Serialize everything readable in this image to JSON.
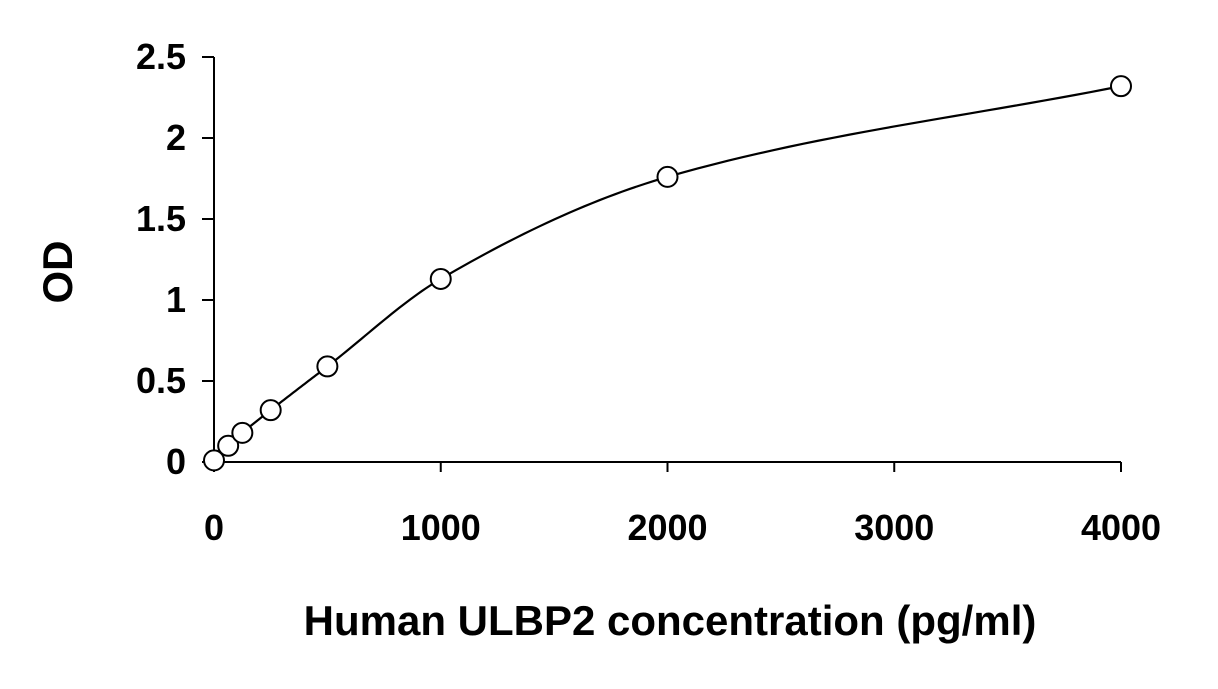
{
  "chart_data": {
    "type": "scatter",
    "xlabel": "Human ULBP2 concentration (pg/ml)",
    "ylabel": "OD",
    "xlim": [
      0,
      4000
    ],
    "ylim": [
      0,
      2.5
    ],
    "x_ticks": [
      "0",
      "1000",
      "2000",
      "3000",
      "4000"
    ],
    "x_tick_values": [
      0,
      1000,
      2000,
      3000,
      4000
    ],
    "y_ticks": [
      "0",
      "0.5",
      "1",
      "1.5",
      "2",
      "2.5"
    ],
    "y_tick_values": [
      0,
      0.5,
      1,
      1.5,
      2,
      2.5
    ],
    "grid": false,
    "legend": "none",
    "series": [
      {
        "marker": "open-circle",
        "fit_line": "smooth-curve",
        "points": [
          {
            "x": 0,
            "y": 0.01
          },
          {
            "x": 62.5,
            "y": 0.1
          },
          {
            "x": 125,
            "y": 0.18
          },
          {
            "x": 250,
            "y": 0.32
          },
          {
            "x": 500,
            "y": 0.59
          },
          {
            "x": 1000,
            "y": 1.13
          },
          {
            "x": 2000,
            "y": 1.76
          },
          {
            "x": 4000,
            "y": 2.32
          }
        ]
      }
    ]
  }
}
